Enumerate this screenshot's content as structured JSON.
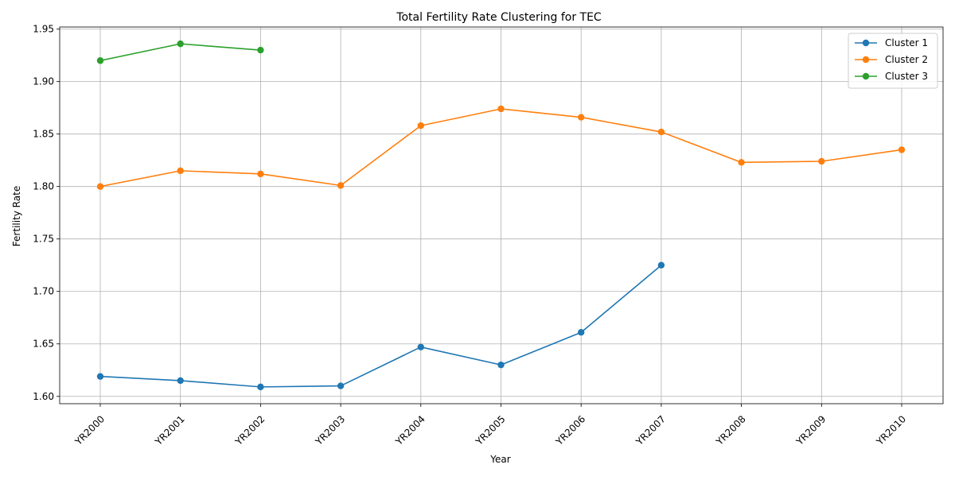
{
  "chart_data": {
    "type": "line",
    "title": "Total Fertility Rate Clustering for TEC",
    "xlabel": "Year",
    "ylabel": "Fertility Rate",
    "categories": [
      "YR2000",
      "YR2001",
      "YR2002",
      "YR2003",
      "YR2004",
      "YR2005",
      "YR2006",
      "YR2007",
      "YR2008",
      "YR2009",
      "YR2010"
    ],
    "y_ticks": [
      "1.60",
      "1.65",
      "1.70",
      "1.75",
      "1.80",
      "1.85",
      "1.90",
      "1.95"
    ],
    "ylim": [
      1.593,
      1.952
    ],
    "grid": true,
    "legend_position": "top-right",
    "marker": "circle",
    "series": [
      {
        "name": "Cluster 1",
        "color": "#1f77b4",
        "values": [
          1.619,
          1.615,
          1.609,
          1.61,
          1.647,
          1.63,
          1.661,
          1.725,
          null,
          null,
          null
        ]
      },
      {
        "name": "Cluster 2",
        "color": "#ff7f0e",
        "values": [
          1.8,
          1.815,
          1.812,
          1.801,
          1.858,
          1.874,
          1.866,
          1.852,
          1.823,
          1.824,
          1.835
        ]
      },
      {
        "name": "Cluster 3",
        "color": "#2ca02c",
        "values": [
          1.92,
          1.936,
          1.93,
          null,
          null,
          null,
          null,
          null,
          null,
          null,
          null
        ]
      }
    ]
  }
}
